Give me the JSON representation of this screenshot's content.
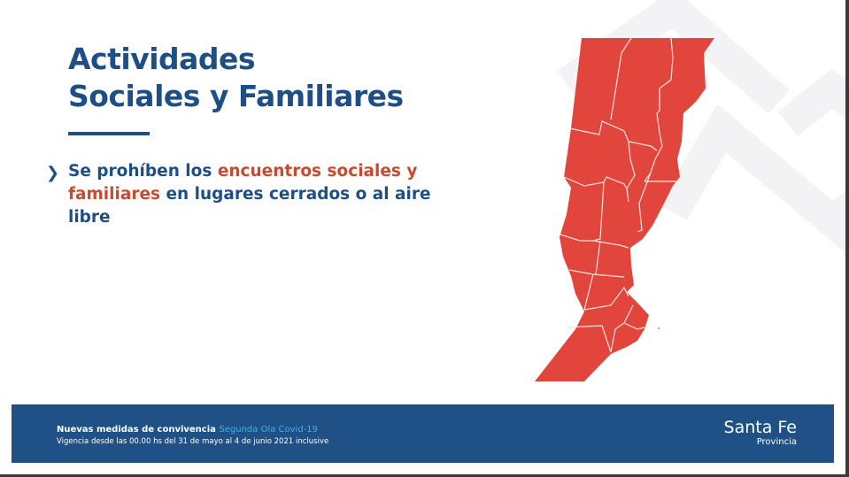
{
  "title": {
    "line1": "Actividades",
    "line2": "Sociales y Familiares"
  },
  "bullet": {
    "icon": "chevron-right-icon",
    "text_before": "Se prohíben los ",
    "highlight": "encuentros sociales y familiares",
    "text_after": " en lugares cerrados o al aire libre"
  },
  "map": {
    "region": "Santa Fe",
    "fill_color": "#e2453b"
  },
  "footer": {
    "line1": "Nuevas medidas de convivencia",
    "line1_accent": "Segunda Ola Covid-19",
    "line2": "Vigencia desde las 00.00 hs del 31 de mayo al 4 de junio 2021 inclusive",
    "logo_main": "Santa Fe",
    "logo_sub": "Provincia"
  },
  "colors": {
    "primary": "#1d4e86",
    "highlight": "#c94a2f",
    "footer_bg": "#1f5187",
    "accent": "#3bb4e8"
  }
}
